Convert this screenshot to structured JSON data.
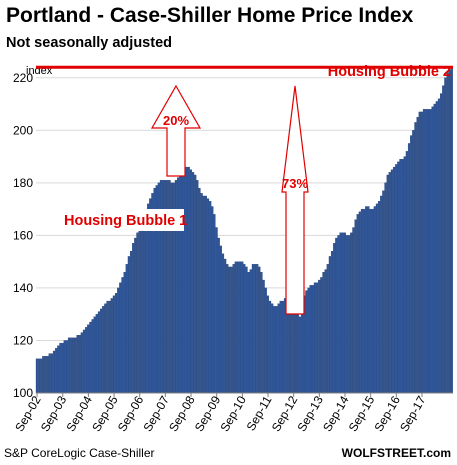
{
  "title": "Portland - Case-Shiller Home Price Index",
  "subtitle": "Not seasonally adjusted",
  "source": "S&P CoreLogic Case-Shiller",
  "brand": "WOLFSTREET.com",
  "colors": {
    "bar": "#2f5597",
    "bar_edge": "#1c3a70",
    "accent": "#e10000",
    "arrow_fill": "#ffffff"
  },
  "chart_data": {
    "type": "bar",
    "ylabel": "index",
    "ylim": [
      100,
      226
    ],
    "yticks": [
      100,
      120,
      140,
      160,
      180,
      200,
      220
    ],
    "xticks": [
      "Sep-02",
      "Sep-03",
      "Sep-04",
      "Sep-05",
      "Sep-06",
      "Sep-07",
      "Sep-08",
      "Sep-09",
      "Sep-10",
      "Sep-11",
      "Sep-12",
      "Sep-13",
      "Sep-14",
      "Sep-15",
      "Sep-16",
      "Sep-17"
    ],
    "x_start": "Sep-02",
    "frequency": "monthly",
    "values": [
      113,
      113,
      113,
      114,
      114,
      114,
      115,
      115,
      116,
      117,
      118,
      119,
      119,
      120,
      120,
      121,
      121,
      121,
      121,
      122,
      122,
      123,
      124,
      125,
      126,
      127,
      128,
      129,
      130,
      131,
      132,
      133,
      134,
      135,
      135,
      136,
      137,
      138,
      140,
      142,
      144,
      146,
      149,
      152,
      154,
      157,
      159,
      161,
      163,
      165,
      168,
      170,
      172,
      174,
      176,
      178,
      179,
      180,
      181,
      181,
      181,
      181,
      181,
      180,
      180,
      181,
      182,
      183,
      185,
      186,
      186,
      186,
      185,
      184,
      183,
      181,
      178,
      176,
      175,
      175,
      174,
      173,
      171,
      168,
      163,
      159,
      156,
      153,
      151,
      149,
      148,
      148,
      149,
      150,
      150,
      150,
      150,
      149,
      148,
      146,
      147,
      149,
      149,
      149,
      148,
      146,
      143,
      140,
      137,
      135,
      134,
      133,
      133,
      134,
      135,
      135,
      136,
      136,
      135,
      134,
      132,
      131,
      130,
      129,
      133,
      137,
      139,
      140,
      141,
      141,
      142,
      142,
      143,
      144,
      146,
      147,
      149,
      152,
      154,
      157,
      159,
      160,
      161,
      161,
      161,
      160,
      160,
      161,
      163,
      166,
      168,
      169,
      170,
      170,
      171,
      171,
      170,
      170,
      171,
      172,
      173,
      175,
      177,
      180,
      183,
      184,
      185,
      186,
      187,
      188,
      189,
      189,
      190,
      192,
      195,
      198,
      200,
      203,
      205,
      207,
      207,
      208,
      208,
      208,
      208,
      209,
      210,
      211,
      212,
      214,
      217,
      220,
      222,
      223,
      224
    ],
    "reference_line": {
      "value": 224,
      "label": "Housing Bubble 2"
    },
    "annotations": [
      {
        "label": "Housing Bubble 1"
      },
      {
        "label": "20%"
      },
      {
        "label": "73%"
      }
    ]
  }
}
